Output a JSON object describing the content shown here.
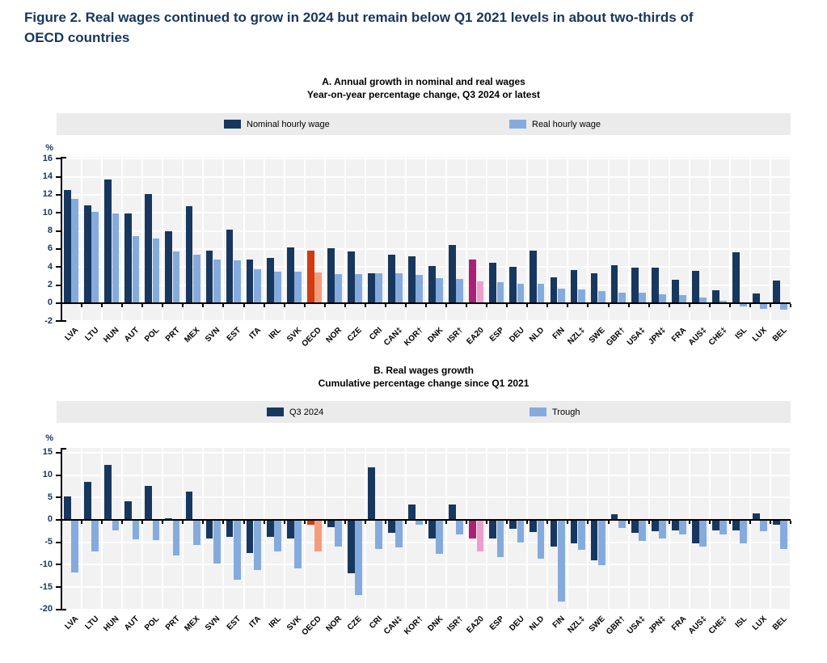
{
  "figure_title": "Figure 2. Real wages continued to grow in 2024 but remain below Q1 2021 levels in about two-thirds of OECD countries",
  "chart_data": [
    {
      "type": "bar",
      "panel": "A",
      "title": "A. Annual growth in nominal and real wages",
      "subtitle": "Year-on-year percentage change, Q3 2024 or latest",
      "ylabel": "%",
      "ylim": [
        -2,
        16
      ],
      "ytick_step": 2,
      "grid": true,
      "legend_position": "top",
      "categories": [
        "LVA",
        "LTU",
        "HUN",
        "AUT",
        "POL",
        "PRT",
        "MEX",
        "SVN",
        "EST",
        "ITA",
        "IRL",
        "SVK",
        "OECD",
        "NOR",
        "CZE",
        "CRI",
        "CAN‡",
        "KOR†",
        "DNK",
        "ISR†",
        "EA20",
        "ESP",
        "DEU",
        "NLD",
        "FIN",
        "NZL‡",
        "SWE",
        "GBR†",
        "USA‡",
        "JPN‡",
        "FRA",
        "AUS‡",
        "CHE‡",
        "ISL",
        "LUX",
        "BEL"
      ],
      "series": [
        {
          "name": "Nominal hourly wage",
          "color": "#17375e",
          "values": [
            12.5,
            10.8,
            13.7,
            9.9,
            12.1,
            8.0,
            10.7,
            5.8,
            8.1,
            4.8,
            5.0,
            6.2,
            5.8,
            6.1,
            5.7,
            3.3,
            5.4,
            5.2,
            4.1,
            6.4,
            4.8,
            4.5,
            4.0,
            5.8,
            2.9,
            3.7,
            3.3,
            4.2,
            3.9,
            3.9,
            2.6,
            3.6,
            1.4,
            5.6,
            1.1,
            2.5
          ]
        },
        {
          "name": "Real hourly wage",
          "color": "#85abdc",
          "values": [
            11.5,
            10.1,
            9.9,
            7.4,
            7.2,
            5.7,
            5.4,
            4.8,
            4.7,
            3.8,
            3.5,
            3.5,
            3.4,
            3.2,
            3.2,
            3.3,
            3.3,
            3.1,
            2.8,
            2.7,
            2.4,
            2.3,
            2.1,
            2.1,
            1.6,
            1.5,
            1.3,
            1.2,
            1.2,
            1.0,
            0.9,
            0.6,
            0.3,
            -0.3,
            -0.5,
            -0.6
          ]
        }
      ],
      "highlighted_categories": {
        "OECD": [
          "#d43a10",
          "#f49d7e"
        ],
        "EA20": [
          "#ab1f77",
          "#ec9fcd"
        ]
      }
    },
    {
      "type": "bar",
      "panel": "B",
      "title": "B. Real wages growth",
      "subtitle": "Cumulative percentage change since Q1 2021",
      "ylabel": "%",
      "ylim": [
        -20,
        15
      ],
      "ytick_step": 5,
      "grid": true,
      "legend_position": "top",
      "categories": [
        "LVA",
        "LTU",
        "HUN",
        "AUT",
        "POL",
        "PRT",
        "MEX",
        "SVN",
        "EST",
        "ITA",
        "IRL",
        "SVK",
        "OECD",
        "NOR",
        "CZE",
        "CRI",
        "CAN‡",
        "KOR†",
        "DNK",
        "ISR†",
        "EA20",
        "ESP",
        "DEU",
        "NLD",
        "FIN",
        "NZL‡",
        "SWE",
        "GBR†",
        "USA‡",
        "JPN‡",
        "FRA",
        "AUS‡",
        "CHE‡",
        "ISL",
        "LUX",
        "BEL"
      ],
      "series": [
        {
          "name": "Q3 2024",
          "color": "#17375e",
          "values": [
            5.2,
            8.4,
            12.3,
            4.1,
            7.6,
            0.3,
            6.4,
            -3.9,
            -3.6,
            -7.3,
            -3.6,
            -3.9,
            -0.9,
            -1.5,
            -11.7,
            11.7,
            -2.7,
            3.5,
            -3.9,
            3.4,
            -3.9,
            -3.9,
            -1.8,
            -2.6,
            -5.7,
            -5.1,
            -8.9,
            1.3,
            -2.7,
            -2.4,
            -2.1,
            -5.0,
            -2.2,
            -2.1,
            1.5,
            -0.9
          ]
        },
        {
          "name": "Trough",
          "color": "#85abdc",
          "values": [
            -11.6,
            -6.8,
            -2.2,
            -4.1,
            -4.4,
            -7.7,
            -5.4,
            -9.6,
            -13.1,
            -11.0,
            -6.9,
            -10.7,
            -6.9,
            -5.7,
            -16.7,
            -6.3,
            -6.0,
            -0.9,
            -7.4,
            -3.0,
            -6.9,
            -8.1,
            -4.8,
            -8.4,
            -18.1,
            -6.5,
            -9.9,
            -1.6,
            -4.5,
            -3.9,
            -3.0,
            -5.8,
            -3.0,
            -5.0,
            -2.4,
            -6.3
          ]
        }
      ],
      "highlighted_categories": {
        "OECD": [
          "#d43a10",
          "#f49d7e"
        ],
        "EA20": [
          "#ab1f77",
          "#ec9fcd"
        ]
      }
    }
  ],
  "colors": {
    "title_navy": "#17365d",
    "bar_dark_blue": "#17375e",
    "bar_light_blue": "#85abdc",
    "oecd_dark": "#d43a10",
    "oecd_light": "#f49d7e",
    "ea20_dark": "#ab1f77",
    "ea20_light": "#ec9fcd",
    "legend_band": "#ebebeb",
    "plot_background": "#f2f2f2"
  }
}
